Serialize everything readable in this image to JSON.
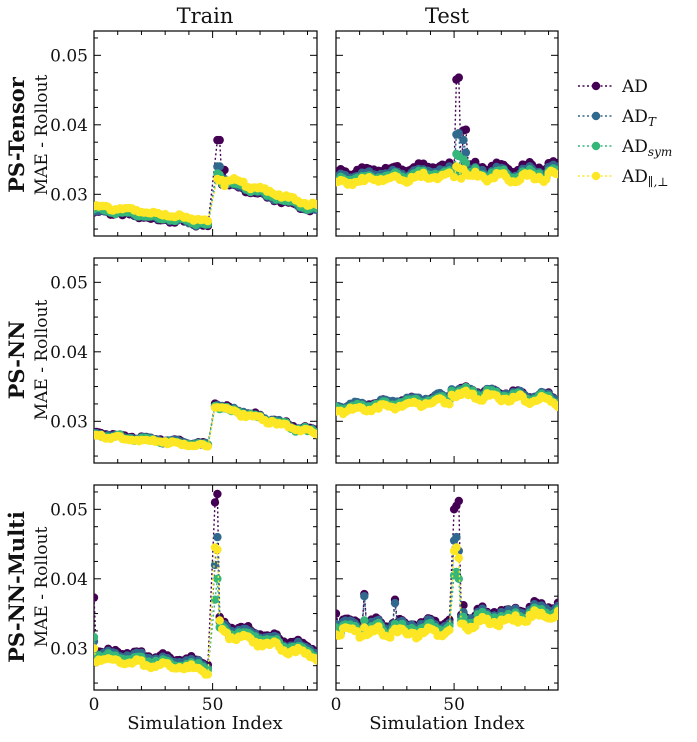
{
  "chart_data": {
    "type": "scatter",
    "layout": "3x2 grid of panels, shared x and y axes",
    "column_titles": [
      "Train",
      "Test"
    ],
    "row_titles": [
      "PS-Tensor",
      "PS-NN",
      "PS-NN-Multi"
    ],
    "ylabel": "MAE - Rollout",
    "xlabel": "Simulation Index",
    "xlim": [
      0,
      94
    ],
    "ylim": [
      0.024,
      0.0535
    ],
    "xticks": [
      0,
      50
    ],
    "yticks": [
      0.03,
      0.04,
      0.05
    ],
    "ytick_labels": [
      "0.03",
      "0.04",
      "0.05"
    ],
    "xtick_labels": [
      "0",
      "50"
    ],
    "legend": {
      "placement": "outside right of top row",
      "entries": [
        {
          "id": "AD",
          "label": "AD",
          "sub": "",
          "color": "#440154"
        },
        {
          "id": "ADT",
          "label": "AD",
          "sub": "T",
          "color": "#31688e"
        },
        {
          "id": "ADsym",
          "label": "AD",
          "sub": "sym",
          "color": "#35b779"
        },
        {
          "id": "ADpar",
          "label": "AD",
          "sub": "∥,⊥",
          "color": "#fde725"
        }
      ]
    },
    "panels": [
      {
        "row": "PS-Tensor",
        "column": "Train",
        "segments": [
          {
            "x": [
              0,
              48
            ],
            "start": 0.0279,
            "end": 0.0257,
            "amp": 0.0003
          },
          {
            "x": [
              52,
              94
            ],
            "start": 0.0322,
            "end": 0.0277,
            "amp": 0.0004
          }
        ],
        "offsets": {
          "AD": -0.0002,
          "ADT": -0.0001,
          "ADsym": 0.0,
          "ADpar": 0.0005
        },
        "spikes": [
          {
            "x": 52,
            "AD": 0.0378,
            "ADT": 0.034,
            "ADsym": 0.033,
            "ADpar": 0.0322
          },
          {
            "x": 53,
            "AD": 0.0378,
            "ADT": 0.034,
            "ADsym": 0.0328,
            "ADpar": 0.032
          },
          {
            "x": 55,
            "AD": 0.0335,
            "ADT": 0.0322,
            "ADsym": 0.0318,
            "ADpar": 0.0312
          }
        ]
      },
      {
        "row": "PS-Tensor",
        "column": "Test",
        "segments": [
          {
            "x": [
              0,
              48
            ],
            "start": 0.032,
            "end": 0.0332,
            "amp": 0.0006
          },
          {
            "x": [
              50,
              94
            ],
            "start": 0.0328,
            "end": 0.033,
            "amp": 0.0009
          }
        ],
        "offsets": {
          "AD": 0.001,
          "ADT": 0.0004,
          "ADsym": 0.0,
          "ADpar": -0.0004
        },
        "spikes": [
          {
            "x": 51,
            "AD": 0.0465,
            "ADT": 0.0386,
            "ADsym": 0.0358,
            "ADpar": 0.034
          },
          {
            "x": 52,
            "AD": 0.0468,
            "ADT": 0.0388,
            "ADsym": 0.0355,
            "ADpar": 0.0338
          },
          {
            "x": 54,
            "AD": 0.0392,
            "ADT": 0.0378,
            "ADsym": 0.035,
            "ADpar": 0.0336
          },
          {
            "x": 55,
            "AD": 0.0393,
            "ADT": 0.036,
            "ADsym": 0.0345,
            "ADpar": 0.033
          }
        ]
      },
      {
        "row": "PS-NN",
        "column": "Train",
        "segments": [
          {
            "x": [
              0,
              48
            ],
            "start": 0.0281,
            "end": 0.0265,
            "amp": 0.0003
          },
          {
            "x": [
              51,
              94
            ],
            "start": 0.0323,
            "end": 0.0282,
            "amp": 0.0004
          }
        ],
        "offsets": {
          "AD": 0.0002,
          "ADT": 0.0001,
          "ADsym": 0.0,
          "ADpar": -0.0001
        },
        "spikes": []
      },
      {
        "row": "PS-NN",
        "column": "Test",
        "segments": [
          {
            "x": [
              0,
              48
            ],
            "start": 0.0318,
            "end": 0.0333,
            "amp": 0.0005
          },
          {
            "x": [
              49,
              94
            ],
            "start": 0.0343,
            "end": 0.0332,
            "amp": 0.0008
          }
        ],
        "offsets": {
          "AD": 0.0003,
          "ADT": 0.0003,
          "ADsym": 0.0,
          "ADpar": -0.0004
        },
        "spikes": []
      },
      {
        "row": "PS-NN-Multi",
        "column": "Train",
        "segments": [
          {
            "x": [
              0,
              48
            ],
            "start": 0.0292,
            "end": 0.0275,
            "amp": 0.0006
          },
          {
            "x": [
              52,
              94
            ],
            "start": 0.033,
            "end": 0.0295,
            "amp": 0.0008
          }
        ],
        "offsets": {
          "AD": 0.0005,
          "ADT": 0.0002,
          "ADsym": -0.0002,
          "ADpar": -0.0007
        },
        "spikes": [
          {
            "x": 0,
            "AD": 0.0373,
            "ADT": 0.031,
            "ADsym": 0.0316,
            "ADpar": 0.03
          },
          {
            "x": 51,
            "AD": 0.051,
            "ADT": 0.042,
            "ADsym": 0.037,
            "ADpar": 0.0445
          },
          {
            "x": 52,
            "AD": 0.0522,
            "ADT": 0.046,
            "ADsym": 0.04,
            "ADpar": 0.0442
          },
          {
            "x": 53,
            "AD": 0.0345,
            "ADT": 0.0338,
            "ADsym": 0.033,
            "ADpar": 0.034
          }
        ]
      },
      {
        "row": "PS-NN-Multi",
        "column": "Test",
        "segments": [
          {
            "x": [
              0,
              48
            ],
            "start": 0.033,
            "end": 0.033,
            "amp": 0.0009
          },
          {
            "x": [
              51,
              94
            ],
            "start": 0.034,
            "end": 0.0355,
            "amp": 0.001
          }
        ],
        "offsets": {
          "AD": 0.0006,
          "ADT": 0.0003,
          "ADsym": -0.0002,
          "ADpar": -0.0007
        },
        "spikes": [
          {
            "x": 0,
            "AD": 0.035,
            "ADT": 0.0335,
            "ADsym": 0.033,
            "ADpar": 0.032
          },
          {
            "x": 12,
            "AD": 0.0378,
            "ADT": 0.0375,
            "ADsym": 0.034,
            "ADpar": 0.033
          },
          {
            "x": 25,
            "AD": 0.037,
            "ADT": 0.0365,
            "ADsym": 0.0335,
            "ADpar": 0.0328
          },
          {
            "x": 50,
            "AD": 0.05,
            "ADT": 0.0455,
            "ADsym": 0.0405,
            "ADpar": 0.044
          },
          {
            "x": 51,
            "AD": 0.0505,
            "ADT": 0.046,
            "ADsym": 0.041,
            "ADpar": 0.0445
          },
          {
            "x": 52,
            "AD": 0.0512,
            "ADT": 0.044,
            "ADsym": 0.04,
            "ADpar": 0.043
          },
          {
            "x": 54,
            "AD": 0.0362,
            "ADT": 0.0352,
            "ADsym": 0.0345,
            "ADpar": 0.0335
          }
        ]
      }
    ]
  }
}
